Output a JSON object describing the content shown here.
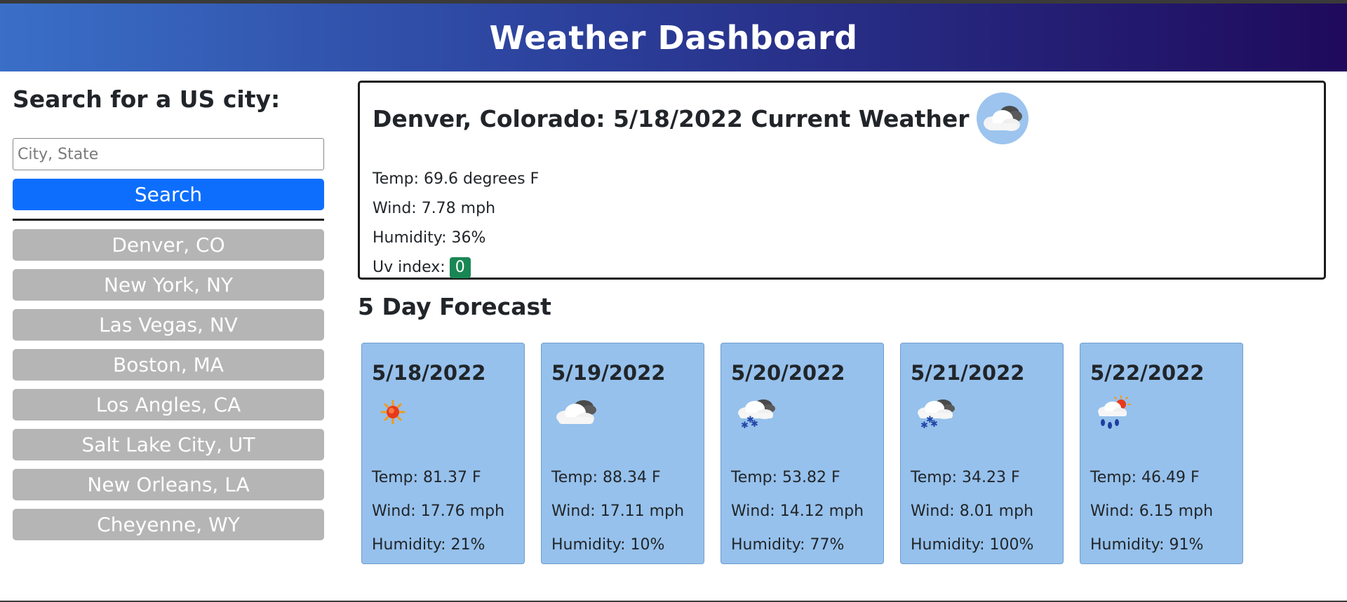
{
  "header": {
    "title": "Weather Dashboard"
  },
  "sidebar": {
    "heading": "Search for a US city:",
    "search_placeholder": "City, State",
    "search_label": "Search",
    "cities": [
      "Denver, CO",
      "New York, NY",
      "Las Vegas, NV",
      "Boston, MA",
      "Los Angles, CA",
      "Salt Lake City, UT",
      "New Orleans, LA",
      "Cheyenne, WY"
    ]
  },
  "current": {
    "title": "Denver, Colorado: 5/18/2022 Current Weather",
    "icon": "cloud-sun-icon",
    "temp": "Temp: 69.6 degrees F",
    "wind": "Wind: 7.78 mph",
    "humidity": "Humidity: 36%",
    "uv_label": "Uv index:",
    "uv_value": "0",
    "uv_color": "#198754"
  },
  "forecast": {
    "title": "5 Day Forecast",
    "days": [
      {
        "date": "5/18/2022",
        "icon": "sun-icon",
        "temp": "Temp: 81.37 F",
        "wind": "Wind: 17.76 mph",
        "humidity": "Humidity: 21%"
      },
      {
        "date": "5/19/2022",
        "icon": "cloud-icon",
        "temp": "Temp: 88.34 F",
        "wind": "Wind: 17.11 mph",
        "humidity": "Humidity: 10%"
      },
      {
        "date": "5/20/2022",
        "icon": "snow-cloud-icon",
        "temp": "Temp: 53.82 F",
        "wind": "Wind: 14.12 mph",
        "humidity": "Humidity: 77%"
      },
      {
        "date": "5/21/2022",
        "icon": "snow-cloud-icon",
        "temp": "Temp: 34.23 F",
        "wind": "Wind: 8.01 mph",
        "humidity": "Humidity: 100%"
      },
      {
        "date": "5/22/2022",
        "icon": "rain-sun-icon",
        "temp": "Temp: 46.49 F",
        "wind": "Wind: 6.15 mph",
        "humidity": "Humidity: 91%"
      }
    ]
  },
  "colors": {
    "header_start": "#3a6fc7",
    "header_end": "#1f0a5c",
    "search_button": "#0d6efd",
    "city_button": "#b5b5b5",
    "card": "#96c1ec"
  }
}
